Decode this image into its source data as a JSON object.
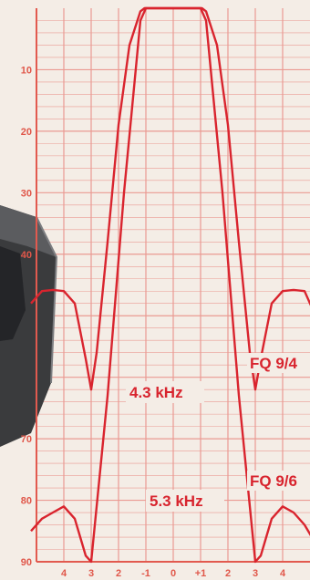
{
  "chart_data": {
    "type": "line",
    "title": "",
    "xlabel": "",
    "ylabel": "",
    "xlim": [
      -5,
      5
    ],
    "ylim": [
      0,
      90
    ],
    "y_inverted": true,
    "grid": true,
    "colors": {
      "grid": "#ea9a92",
      "axis": "#e25a4f",
      "curve": "#d9242e",
      "paper": "#f4ede6",
      "device": "#3a3b3d"
    },
    "x_ticks": [
      {
        "v": -4,
        "label": "4"
      },
      {
        "v": -3,
        "label": "3"
      },
      {
        "v": -2,
        "label": "2"
      },
      {
        "v": -1,
        "label": "-1"
      },
      {
        "v": 0,
        "label": "0"
      },
      {
        "v": 1,
        "label": "+1"
      },
      {
        "v": 2,
        "label": "2"
      },
      {
        "v": 3,
        "label": "3"
      },
      {
        "v": 4,
        "label": "4"
      }
    ],
    "y_ticks": [
      {
        "v": 10,
        "label": "10"
      },
      {
        "v": 20,
        "label": "20"
      },
      {
        "v": 30,
        "label": "30"
      },
      {
        "v": 40,
        "label": "40"
      },
      {
        "v": 70,
        "label": "70"
      },
      {
        "v": 80,
        "label": "80"
      },
      {
        "v": 90,
        "label": "90"
      }
    ],
    "series": [
      {
        "name": "FQ 9/4",
        "bandwidth_label": "4.3 kHz",
        "x": [
          -5.2,
          -4.8,
          -4.4,
          -4.0,
          -3.6,
          -3.2,
          -3.0,
          -2.8,
          -2.4,
          -2.0,
          -1.6,
          -1.2,
          -1.05,
          -0.6,
          0,
          0.6,
          1.05,
          1.2,
          1.6,
          2.0,
          2.4,
          2.8,
          3.0,
          3.2,
          3.6,
          4.0,
          4.4,
          4.8,
          5.2
        ],
        "y": [
          48,
          46,
          45.8,
          46,
          48,
          57,
          62,
          56,
          38,
          19,
          6,
          0.5,
          0,
          0,
          0,
          0,
          0,
          0.5,
          6,
          19,
          38,
          56,
          62,
          57,
          48,
          46,
          45.8,
          46,
          50
        ]
      },
      {
        "name": "FQ 9/6",
        "bandwidth_label": "5.3 kHz",
        "x": [
          -5.2,
          -4.8,
          -4.4,
          -4.0,
          -3.6,
          -3.4,
          -3.2,
          -3.0,
          -2.4,
          -1.8,
          -1.2,
          -1.0,
          -0.6,
          0,
          0.6,
          1.0,
          1.2,
          1.8,
          2.4,
          3.0,
          3.2,
          3.4,
          3.6,
          4.0,
          4.4,
          4.8,
          5.2
        ],
        "y": [
          85,
          83,
          82,
          81,
          83,
          86,
          89,
          90,
          63,
          30,
          2,
          0,
          0,
          0,
          0,
          0,
          2,
          30,
          63,
          90,
          89,
          86,
          83,
          81,
          82,
          84,
          87
        ]
      }
    ]
  }
}
